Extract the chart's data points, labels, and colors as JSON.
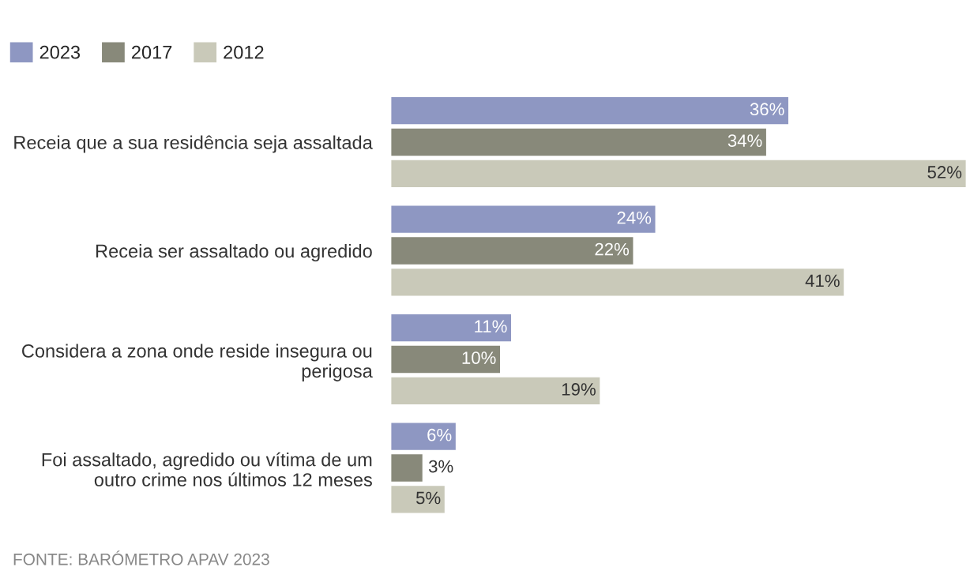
{
  "chart_data": {
    "type": "bar",
    "orientation": "horizontal",
    "categories": [
      "Receia que a sua residência seja assaltada",
      "Receia ser assaltado ou agredido",
      "Considera a zona onde reside insegura ou\nperigosa",
      "Foi assaltado, agredido ou vítima de um\noutro crime nos últimos 12 meses"
    ],
    "series": [
      {
        "name": "2023",
        "color": "#8e97c2",
        "values": [
          36,
          24,
          11,
          6
        ],
        "value_labels": [
          "36%",
          "24%",
          "11%",
          "6%"
        ]
      },
      {
        "name": "2017",
        "color": "#88897a",
        "values": [
          34,
          22,
          10,
          3
        ],
        "value_labels": [
          "34%",
          "22%",
          "10%",
          "3%"
        ]
      },
      {
        "name": "2012",
        "color": "#c9c9b9",
        "values": [
          52,
          41,
          19,
          5
        ],
        "value_labels": [
          "52%",
          "41%",
          "19%",
          "5%"
        ]
      }
    ],
    "legend": "top left",
    "annotations": [
      "FONTE: BARÓMETRO APAV 2023"
    ]
  }
}
